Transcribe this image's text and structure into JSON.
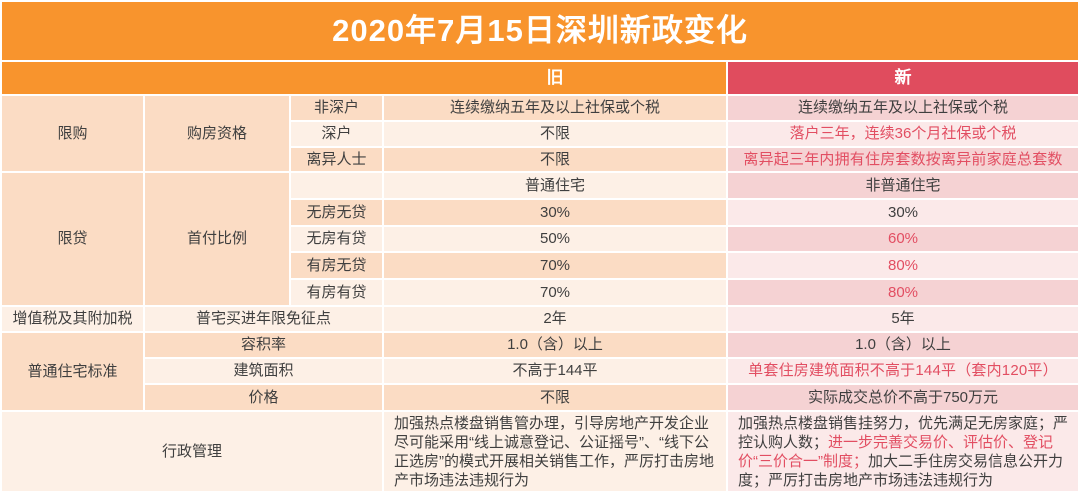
{
  "title": "2020年7月15日深圳新政变化",
  "table": {
    "header": {
      "old_label": "旧",
      "new_label": "新"
    },
    "groups": {
      "limit_purchase": "限购",
      "qualification": "购房资格",
      "limit_loan": "限贷",
      "down_payment": "首付比例",
      "vat": "增值税及其附加税",
      "ordinary_standard": "普通住宅标准"
    },
    "rows": [
      {
        "label": "非深户",
        "old": "连续缴纳五年及以上社保或个税",
        "new": "连续缴纳五年及以上社保或个税"
      },
      {
        "label": "深户",
        "old": "不限",
        "new": "落户三年，连续36个月社保或个税"
      },
      {
        "label": "离异人士",
        "old": "不限",
        "new": "离异起三年内拥有住房套数按离异前家庭总套数"
      },
      {
        "label": "",
        "old": "普通住宅",
        "new": "非普通住宅"
      },
      {
        "label": "无房无贷",
        "old": "30%",
        "new": "30%"
      },
      {
        "label": "无房有贷",
        "old": "50%",
        "new": "60%"
      },
      {
        "label": "有房无贷",
        "old": "70%",
        "new": "80%"
      },
      {
        "label": "有房有贷",
        "old": "70%",
        "new": "80%"
      },
      {
        "label": "普宅买进年限免征点",
        "old": "2年",
        "new": "5年"
      },
      {
        "label": "容积率",
        "old": "1.0（含）以上",
        "new": "1.0（含）以上"
      },
      {
        "label": "建筑面积",
        "old": "不高于144平",
        "new": "单套住房建筑面积不高于144平（套内120平）"
      },
      {
        "label": "价格",
        "old": "不限",
        "new": "实际成交总价不高于750万元"
      },
      {
        "label": "行政管理",
        "old": "加强热点楼盘销售管办理，引导房地产开发企业尽可能采用“线上诚意登记、公证摇号”、“线下公正选房”的模式开展相关销售工作，严厉打击房地产市场违法违规行为",
        "new_parts": {
          "before": "加强热点楼盘销售挂努力，优先满足无房家庭；严控认购人数；",
          "red": "进一步完善交易价、评估价、登记价“三价合一”制度；",
          "after": "加大二手住房交易信息公开力度；严厉打击房地产市场违法违规行为"
        }
      }
    ]
  },
  "colors": {
    "header_orange": "#F8942D",
    "header_crimson": "#E04C5E",
    "highlight_red": "#E24E62",
    "peach_dark": "#FBDCC4",
    "peach_light": "#FDF0E6",
    "pink_dark": "#F5D2D3",
    "pink_light": "#FBE9E9",
    "body_text": "#3F3F3F"
  }
}
